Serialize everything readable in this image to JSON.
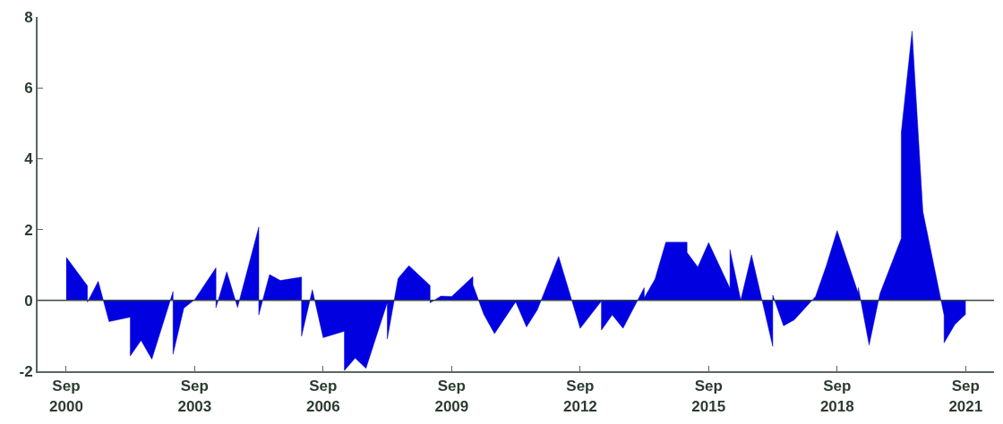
{
  "chart_data": {
    "type": "area",
    "color": "#0000e0",
    "x": [
      "2000-09",
      "2001-03",
      "2001-03",
      "2001-06",
      "2001-09",
      "2002-03",
      "2002-03",
      "2002-06",
      "2002-09",
      "2003-03",
      "2003-03",
      "2003-06",
      "2003-09",
      "2004-03",
      "2004-03",
      "2004-06",
      "2004-09",
      "2005-03",
      "2005-03",
      "2005-06",
      "2005-09",
      "2006-03",
      "2006-03",
      "2006-06",
      "2006-09",
      "2007-03",
      "2007-03",
      "2007-06",
      "2007-09",
      "2008-03",
      "2008-03",
      "2008-06",
      "2008-09",
      "2009-03",
      "2009-03",
      "2009-06",
      "2009-09",
      "2010-03",
      "2010-03",
      "2010-06",
      "2010-09",
      "2011-03",
      "2011-06",
      "2011-09",
      "2012-03",
      "2012-09",
      "2013-03",
      "2013-03",
      "2013-06",
      "2013-09",
      "2014-03",
      "2014-03",
      "2014-06",
      "2014-09",
      "2015-03",
      "2015-03",
      "2015-06",
      "2015-09",
      "2016-03",
      "2016-03",
      "2016-06",
      "2016-09",
      "2017-03",
      "2017-03",
      "2017-06",
      "2017-09",
      "2018-03",
      "2018-06",
      "2018-09",
      "2019-03",
      "2019-03",
      "2019-06",
      "2019-09",
      "2020-03",
      "2020-03",
      "2020-06",
      "2020-09",
      "2021-03",
      "2021-03",
      "2021-06",
      "2021-09"
    ],
    "values": [
      1.22,
      0.41,
      -0.05,
      0.54,
      -0.6,
      -0.47,
      -1.57,
      -1.13,
      -1.66,
      0.25,
      -1.52,
      -0.22,
      0.02,
      0.92,
      -0.21,
      0.81,
      -0.2,
      2.07,
      -0.41,
      0.73,
      0.56,
      0.66,
      -1.01,
      0.3,
      -1.05,
      -0.87,
      -1.98,
      -1.63,
      -1.92,
      -0.06,
      -1.09,
      0.62,
      0.98,
      0.42,
      -0.07,
      0.12,
      0.11,
      0.67,
      0.44,
      -0.39,
      -0.94,
      -0.04,
      -0.75,
      -0.27,
      1.24,
      -0.79,
      -0.02,
      -0.84,
      -0.41,
      -0.79,
      0.36,
      0.07,
      0.6,
      1.64,
      1.64,
      1.35,
      0.94,
      1.63,
      0.34,
      1.43,
      0.01,
      1.28,
      -1.3,
      0.15,
      -0.72,
      -0.55,
      0.11,
      0.98,
      1.97,
      0.19,
      0.36,
      -1.26,
      0.19,
      1.75,
      4.74,
      7.6,
      2.51,
      -0.42,
      -1.2,
      -0.68,
      -0.39
    ],
    "xlim": [
      "2000-01",
      "2022-05"
    ],
    "xticks": [
      {
        "value": "2000-09",
        "label": "Sep\n2000"
      },
      {
        "value": "2003-09",
        "label": "Sep\n2003"
      },
      {
        "value": "2006-09",
        "label": "Sep\n2006"
      },
      {
        "value": "2009-09",
        "label": "Sep\n2009"
      },
      {
        "value": "2012-09",
        "label": "Sep\n2012"
      },
      {
        "value": "2015-09",
        "label": "Sep\n2015"
      },
      {
        "value": "2018-09",
        "label": "Sep\n2018"
      },
      {
        "value": "2021-09",
        "label": "Sep\n2021"
      }
    ],
    "ylim": [
      -2,
      8
    ],
    "yticks": [
      -2,
      0,
      2,
      4,
      6,
      8
    ],
    "ref_lines": [
      {
        "axis": "y",
        "value": 0,
        "color": "#3c4640"
      }
    ]
  }
}
